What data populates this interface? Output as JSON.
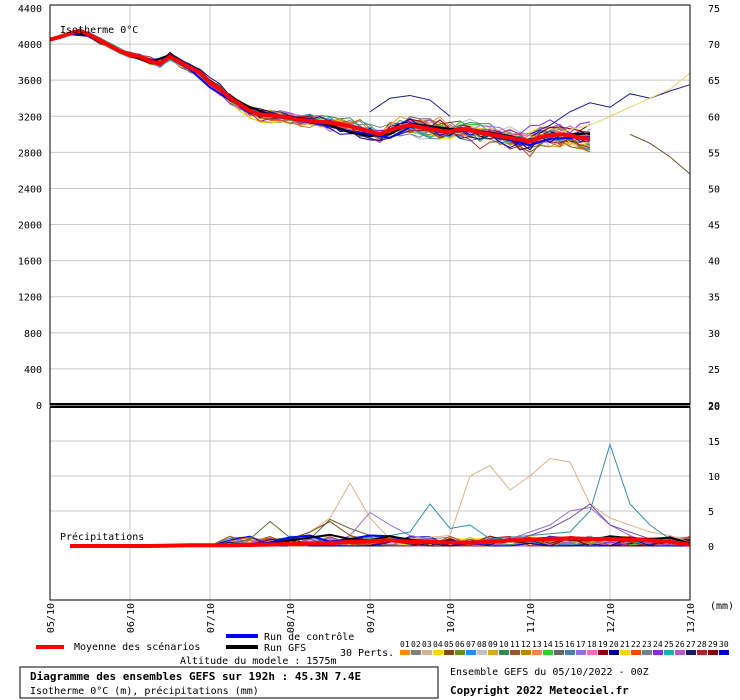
{
  "chart_data": [
    {
      "type": "line",
      "title": "Isotherme 0°C",
      "x": [
        "05/10",
        "06/10",
        "07/10",
        "08/10",
        "09/10",
        "10/10",
        "11/10",
        "12/10",
        "13/10"
      ],
      "ylim": [
        0,
        4400
      ],
      "yticks": [
        0,
        400,
        800,
        1200,
        1600,
        2000,
        2400,
        2800,
        3200,
        3600,
        4000,
        4400
      ],
      "y2lim": [
        20,
        75
      ],
      "y2ticks": [
        20,
        25,
        30,
        35,
        40,
        45,
        50,
        55,
        60,
        65,
        70,
        75
      ],
      "xrange_hours": [
        0,
        192
      ],
      "grid": true,
      "mean": [
        [
          0,
          4050
        ],
        [
          3,
          4080
        ],
        [
          6,
          4120
        ],
        [
          9,
          4150
        ],
        [
          12,
          4100
        ],
        [
          15,
          4040
        ],
        [
          18,
          3980
        ],
        [
          21,
          3920
        ],
        [
          24,
          3880
        ],
        [
          27,
          3860
        ],
        [
          30,
          3810
        ],
        [
          33,
          3780
        ],
        [
          36,
          3860
        ],
        [
          39,
          3800
        ],
        [
          42,
          3740
        ],
        [
          45,
          3680
        ],
        [
          48,
          3570
        ],
        [
          51,
          3500
        ],
        [
          54,
          3400
        ],
        [
          57,
          3330
        ],
        [
          60,
          3260
        ],
        [
          63,
          3220
        ],
        [
          66,
          3210
        ],
        [
          69,
          3200
        ],
        [
          72,
          3180
        ],
        [
          75,
          3160
        ],
        [
          78,
          3150
        ],
        [
          81,
          3140
        ],
        [
          84,
          3130
        ],
        [
          87,
          3110
        ],
        [
          90,
          3090
        ],
        [
          93,
          3060
        ],
        [
          96,
          3030
        ],
        [
          99,
          3000
        ],
        [
          102,
          3050
        ],
        [
          105,
          3080
        ],
        [
          108,
          3100
        ],
        [
          111,
          3080
        ],
        [
          114,
          3060
        ],
        [
          117,
          3040
        ],
        [
          120,
          3030
        ],
        [
          123,
          3060
        ],
        [
          126,
          3050
        ],
        [
          129,
          3020
        ],
        [
          132,
          3000
        ],
        [
          135,
          2980
        ],
        [
          138,
          2960
        ],
        [
          141,
          2940
        ],
        [
          144,
          2920
        ],
        [
          147,
          2970
        ],
        [
          150,
          2990
        ],
        [
          153,
          3000
        ],
        [
          156,
          2990
        ],
        [
          159,
          2960
        ],
        [
          162,
          2950
        ]
      ],
      "control": [
        [
          0,
          4040
        ],
        [
          6,
          4110
        ],
        [
          12,
          4090
        ],
        [
          18,
          3970
        ],
        [
          24,
          3890
        ],
        [
          30,
          3820
        ],
        [
          36,
          3850
        ],
        [
          42,
          3720
        ],
        [
          48,
          3520
        ],
        [
          54,
          3380
        ],
        [
          60,
          3260
        ],
        [
          66,
          3200
        ],
        [
          72,
          3170
        ],
        [
          78,
          3130
        ],
        [
          84,
          3090
        ],
        [
          90,
          3030
        ],
        [
          96,
          3000
        ],
        [
          102,
          2960
        ],
        [
          108,
          3080
        ],
        [
          114,
          3060
        ],
        [
          120,
          3030
        ],
        [
          126,
          3040
        ],
        [
          132,
          2990
        ],
        [
          138,
          2940
        ],
        [
          144,
          2880
        ],
        [
          150,
          2950
        ],
        [
          156,
          2960
        ],
        [
          162,
          2970
        ]
      ],
      "gfs": [
        [
          0,
          4050
        ],
        [
          6,
          4130
        ],
        [
          12,
          4100
        ],
        [
          18,
          3990
        ],
        [
          24,
          3870
        ],
        [
          30,
          3800
        ],
        [
          36,
          3880
        ],
        [
          42,
          3750
        ],
        [
          48,
          3590
        ],
        [
          54,
          3420
        ],
        [
          60,
          3300
        ],
        [
          66,
          3220
        ],
        [
          72,
          3190
        ],
        [
          78,
          3160
        ],
        [
          84,
          3100
        ],
        [
          90,
          3020
        ],
        [
          96,
          2980
        ],
        [
          102,
          3000
        ],
        [
          108,
          3120
        ],
        [
          114,
          3090
        ],
        [
          120,
          3060
        ],
        [
          126,
          3050
        ],
        [
          132,
          3020
        ],
        [
          138,
          2980
        ],
        [
          144,
          2930
        ],
        [
          150,
          2980
        ],
        [
          156,
          3000
        ],
        [
          162,
          3010
        ]
      ]
    },
    {
      "type": "line",
      "title": "Précipitations",
      "xlabel": "(mm)",
      "x": [
        "05/10",
        "06/10",
        "07/10",
        "08/10",
        "09/10",
        "10/10",
        "11/10",
        "12/10",
        "13/10"
      ],
      "ylim": [
        0,
        20
      ],
      "yticks": [
        0,
        5,
        10,
        15,
        20
      ],
      "mean": [
        [
          6,
          0
        ],
        [
          18,
          0
        ],
        [
          30,
          0
        ],
        [
          42,
          0.1
        ],
        [
          54,
          0.1
        ],
        [
          66,
          0.2
        ],
        [
          72,
          0.3
        ],
        [
          78,
          0.4
        ],
        [
          84,
          0.4
        ],
        [
          90,
          0.6
        ],
        [
          96,
          0.7
        ],
        [
          102,
          0.8
        ],
        [
          108,
          0.6
        ],
        [
          114,
          0.6
        ],
        [
          120,
          0.5
        ],
        [
          126,
          0.5
        ],
        [
          132,
          0.6
        ],
        [
          138,
          0.8
        ],
        [
          144,
          0.9
        ],
        [
          150,
          1.0
        ],
        [
          156,
          1.1
        ],
        [
          162,
          1.0
        ],
        [
          168,
          1.0
        ],
        [
          174,
          0.9
        ],
        [
          180,
          0.8
        ],
        [
          186,
          0.6
        ],
        [
          192,
          0.2
        ]
      ],
      "control": [
        [
          6,
          0
        ],
        [
          60,
          0
        ],
        [
          66,
          0.5
        ],
        [
          72,
          1.2
        ],
        [
          78,
          1.5
        ],
        [
          84,
          0.6
        ],
        [
          90,
          1.0
        ],
        [
          96,
          1.5
        ],
        [
          102,
          1.4
        ],
        [
          108,
          0.7
        ],
        [
          114,
          0.5
        ],
        [
          120,
          0.8
        ],
        [
          126,
          0.4
        ],
        [
          132,
          0.6
        ],
        [
          138,
          0.9
        ],
        [
          144,
          0.8
        ],
        [
          150,
          1.2
        ],
        [
          156,
          1.0
        ],
        [
          162,
          0.9
        ],
        [
          168,
          1.1
        ],
        [
          174,
          0.9
        ],
        [
          180,
          0.7
        ],
        [
          186,
          0.6
        ],
        [
          192,
          0.3
        ]
      ],
      "gfs": [
        [
          6,
          0
        ],
        [
          60,
          0
        ],
        [
          66,
          0.3
        ],
        [
          72,
          0.8
        ],
        [
          78,
          1.2
        ],
        [
          84,
          1.6
        ],
        [
          90,
          1.0
        ],
        [
          96,
          0.8
        ],
        [
          102,
          1.4
        ],
        [
          108,
          0.9
        ],
        [
          114,
          0.6
        ],
        [
          120,
          0.7
        ],
        [
          126,
          0.5
        ],
        [
          132,
          0.6
        ],
        [
          138,
          0.8
        ],
        [
          144,
          1.0
        ],
        [
          150,
          1.2
        ],
        [
          156,
          0.9
        ],
        [
          162,
          0.8
        ],
        [
          168,
          1.4
        ],
        [
          174,
          1.1
        ],
        [
          180,
          1.0
        ],
        [
          186,
          1.2
        ],
        [
          192,
          0.4
        ]
      ],
      "spikes": [
        {
          "color": "#d9b38c",
          "points": [
            [
              72,
              0
            ],
            [
              78,
              2
            ],
            [
              84,
              4
            ],
            [
              90,
              9
            ],
            [
              96,
              4
            ],
            [
              102,
              1
            ],
            [
              108,
              1
            ],
            [
              120,
              1.5
            ],
            [
              126,
              10
            ],
            [
              132,
              11.5
            ],
            [
              138,
              8
            ],
            [
              144,
              10
            ],
            [
              150,
              12.5
            ],
            [
              156,
              12
            ],
            [
              162,
              6
            ],
            [
              168,
              4
            ],
            [
              174,
              3
            ],
            [
              180,
              2
            ],
            [
              186,
              1.5
            ],
            [
              192,
              0.5
            ]
          ]
        },
        {
          "color": "#3b88a8",
          "points": [
            [
              120,
              0.5
            ],
            [
              132,
              1
            ],
            [
              144,
              1.5
            ],
            [
              156,
              2
            ],
            [
              162,
              5
            ],
            [
              168,
              14.5
            ],
            [
              174,
              6
            ],
            [
              180,
              3
            ],
            [
              186,
              1
            ],
            [
              192,
              0.2
            ]
          ]
        },
        {
          "color": "#9c6fd6",
          "points": [
            [
              84,
              0.3
            ],
            [
              90,
              1.5
            ],
            [
              96,
              4.8
            ],
            [
              102,
              3
            ],
            [
              108,
              1.5
            ],
            [
              120,
              0.5
            ],
            [
              138,
              1
            ],
            [
              150,
              3
            ],
            [
              156,
              5
            ],
            [
              162,
              5.5
            ],
            [
              168,
              3
            ],
            [
              174,
              1.5
            ],
            [
              180,
              0.5
            ]
          ]
        },
        {
          "color": "#2e8bb0",
          "points": [
            [
              96,
              1
            ],
            [
              102,
              1.5
            ],
            [
              108,
              2
            ],
            [
              114,
              6
            ],
            [
              120,
              2.5
            ],
            [
              126,
              3
            ],
            [
              132,
              1
            ],
            [
              144,
              0.8
            ],
            [
              156,
              1
            ]
          ]
        },
        {
          "color": "#6b4fa0",
          "points": [
            [
              138,
              0.5
            ],
            [
              150,
              2.5
            ],
            [
              156,
              4
            ],
            [
              162,
              6
            ],
            [
              168,
              3
            ],
            [
              174,
              2
            ],
            [
              180,
              1
            ],
            [
              186,
              0.5
            ]
          ]
        },
        {
          "color": "#556b2f",
          "points": [
            [
              54,
              0.3
            ],
            [
              60,
              1
            ],
            [
              66,
              3.5
            ],
            [
              72,
              1.2
            ],
            [
              78,
              1
            ],
            [
              84,
              3.8
            ],
            [
              90,
              2.5
            ],
            [
              96,
              1.5
            ],
            [
              102,
              1
            ]
          ]
        },
        {
          "color": "#8b4513",
          "points": [
            [
              66,
              0.4
            ],
            [
              72,
              1
            ],
            [
              78,
              2
            ],
            [
              84,
              3.5
            ],
            [
              90,
              1.5
            ],
            [
              96,
              0.8
            ]
          ]
        }
      ]
    }
  ],
  "labels": {
    "isotherme": "Isotherme 0°C",
    "precip": "Précipitations",
    "mm": "(mm)",
    "legend_mean": "Moyenne des scénarios",
    "legend_control": "Run de contrôle",
    "legend_gfs": "Run GFS",
    "perts": "30 Perts.",
    "altitude": "Altitude du modele : 1575m",
    "box_title": "Diagramme des ensembles GEFS sur 192h : 45.3N 7.4E",
    "box_sub": "Isotherme 0°C (m), précipitations (mm)",
    "ensemble_info": "Ensemble GEFS du 05/10/2022 - 00Z",
    "copyright": "Copyright 2022 Meteociel.fr"
  },
  "members": [
    "01",
    "02",
    "03",
    "04",
    "05",
    "06",
    "07",
    "08",
    "09",
    "10",
    "11",
    "12",
    "13",
    "14",
    "15",
    "16",
    "17",
    "18",
    "19",
    "20",
    "21",
    "22",
    "23",
    "24",
    "25",
    "26",
    "27",
    "28",
    "29",
    "30"
  ],
  "member_colors": [
    "#ff8c00",
    "#808080",
    "#d2b48c",
    "#ffd700",
    "#8b4513",
    "#6b8e23",
    "#1e90ff",
    "#c0c0c0",
    "#daa520",
    "#2e8b57",
    "#a0522d",
    "#b8860b",
    "#ff7f50",
    "#32cd32",
    "#696969",
    "#4682b4",
    "#9370db",
    "#ff69b4",
    "#8b0000",
    "#000080",
    "#ffd700",
    "#ff4500",
    "#708090",
    "#8a2be2",
    "#20b2aa",
    "#ba55d3",
    "#191970",
    "#a52a2a",
    "#800000",
    "#0000cd"
  ],
  "colors": {
    "mean": "#ff0000",
    "control": "#0000ff",
    "gfs": "#000000",
    "grid": "#c8c8c8"
  }
}
